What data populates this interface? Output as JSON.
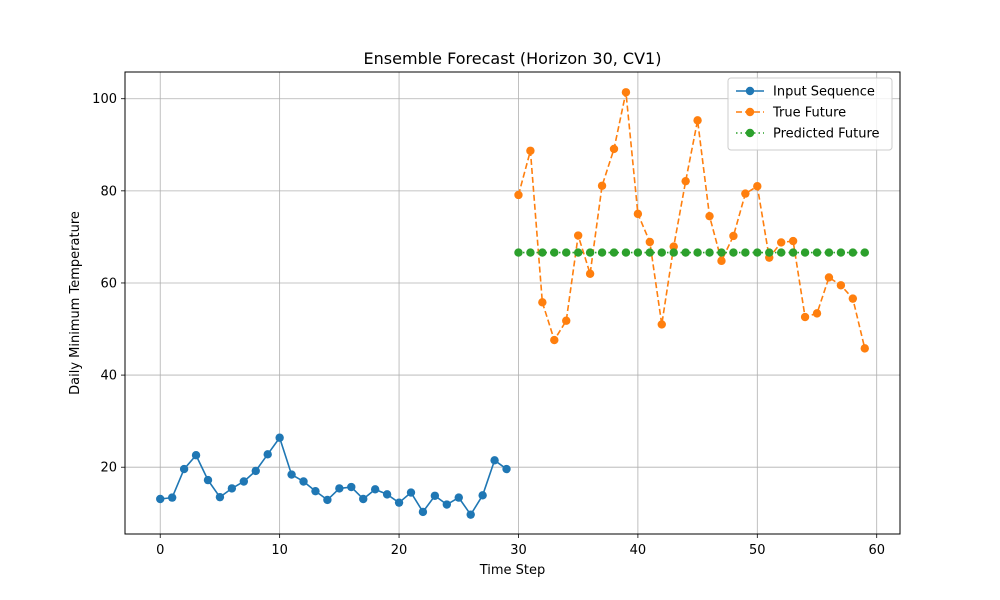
{
  "chart_data": {
    "type": "line",
    "title": "Ensemble Forecast (Horizon 30, CV1)",
    "xlabel": "Time Step",
    "ylabel": "Daily Minimum Temperature",
    "xlim": [
      -2.95,
      61.95
    ],
    "ylim": [
      5.5,
      105.8
    ],
    "xticks": [
      0,
      10,
      20,
      30,
      40,
      50,
      60
    ],
    "yticks": [
      20,
      40,
      60,
      80,
      100
    ],
    "grid": true,
    "legend_position": "top-right",
    "series": [
      {
        "name": "Input Sequence",
        "color": "#1f77b4",
        "style": "solid",
        "x": [
          0,
          1,
          2,
          3,
          4,
          5,
          6,
          7,
          8,
          9,
          10,
          11,
          12,
          13,
          14,
          15,
          16,
          17,
          18,
          19,
          20,
          21,
          22,
          23,
          24,
          25,
          26,
          27,
          28,
          29
        ],
        "values": [
          13.1,
          13.4,
          19.6,
          22.6,
          17.2,
          13.5,
          15.4,
          16.9,
          19.2,
          22.8,
          26.4,
          18.4,
          16.9,
          14.8,
          12.9,
          15.4,
          15.7,
          13.1,
          15.2,
          14.1,
          12.3,
          14.5,
          10.3,
          13.8,
          11.9,
          13.4,
          9.7,
          13.9,
          21.5,
          19.6
        ]
      },
      {
        "name": "True Future",
        "color": "#ff7f0e",
        "style": "dashed",
        "x": [
          30,
          31,
          32,
          33,
          34,
          35,
          36,
          37,
          38,
          39,
          40,
          41,
          42,
          43,
          44,
          45,
          46,
          47,
          48,
          49,
          50,
          51,
          52,
          53,
          54,
          55,
          56,
          57,
          58,
          59
        ],
        "values": [
          79.1,
          88.7,
          55.8,
          47.6,
          51.8,
          70.3,
          62.0,
          81.1,
          89.1,
          101.4,
          75.0,
          68.9,
          51.0,
          67.9,
          82.1,
          95.3,
          74.5,
          64.8,
          70.2,
          79.4,
          81.0,
          65.5,
          68.8,
          69.1,
          52.6,
          53.4,
          61.2,
          59.5,
          56.6,
          45.8
        ]
      },
      {
        "name": "Predicted Future",
        "color": "#2ca02c",
        "style": "dotted",
        "x": [
          30,
          31,
          32,
          33,
          34,
          35,
          36,
          37,
          38,
          39,
          40,
          41,
          42,
          43,
          44,
          45,
          46,
          47,
          48,
          49,
          50,
          51,
          52,
          53,
          54,
          55,
          56,
          57,
          58,
          59
        ],
        "values": [
          66.6,
          66.6,
          66.6,
          66.6,
          66.6,
          66.6,
          66.6,
          66.6,
          66.6,
          66.6,
          66.6,
          66.6,
          66.6,
          66.6,
          66.6,
          66.6,
          66.6,
          66.6,
          66.6,
          66.6,
          66.6,
          66.6,
          66.6,
          66.6,
          66.6,
          66.6,
          66.6,
          66.6,
          66.6,
          66.6
        ]
      }
    ]
  }
}
